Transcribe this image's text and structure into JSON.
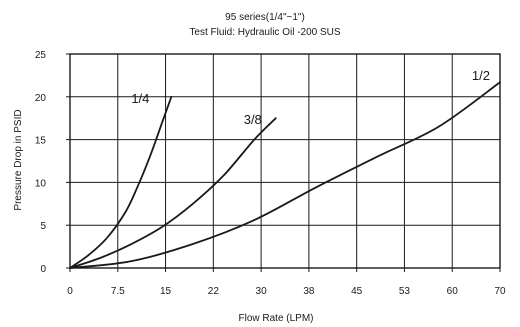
{
  "chart_data": {
    "type": "line",
    "title": "95 series(1/4\"~1\")",
    "subtitle": "Test Fluid: Hydraulic Oil -200 SUS",
    "xlabel": "Flow Rate (LPM)",
    "ylabel": "Pressure Drop in PSID",
    "x_ticks": [
      "0",
      "7.5",
      "15",
      "22",
      "30",
      "38",
      "45",
      "53",
      "60",
      "70"
    ],
    "y_ticks": [
      "0",
      "5",
      "10",
      "15",
      "20",
      "25"
    ],
    "xlim": [
      0,
      70
    ],
    "ylim": [
      0,
      25
    ],
    "grid": true,
    "colors": {
      "line": "#1a1a1a",
      "grid": "#1a1a1a",
      "background": "#ffffff"
    },
    "series": [
      {
        "name": "1/4",
        "x": [
          0,
          3,
          6,
          9,
          11,
          13,
          15,
          16.5
        ],
        "y": [
          0,
          1.5,
          3.5,
          6.5,
          9.5,
          13,
          17,
          20
        ]
      },
      {
        "name": "3/8",
        "x": [
          0,
          5,
          10,
          15,
          20,
          25,
          30,
          33.5
        ],
        "y": [
          0,
          1.2,
          2.8,
          4.8,
          7.5,
          10.8,
          15,
          17.5
        ]
      },
      {
        "name": "1/2",
        "x": [
          0,
          10,
          20,
          30,
          40,
          50,
          60,
          70
        ],
        "y": [
          0,
          0.8,
          2.8,
          5.6,
          9.4,
          13,
          16.5,
          21.7
        ]
      }
    ]
  }
}
